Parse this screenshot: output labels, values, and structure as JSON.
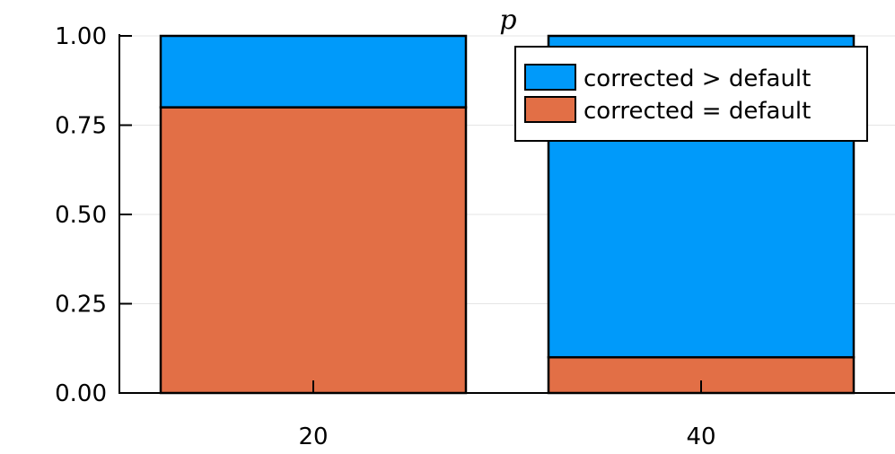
{
  "chart_data": {
    "type": "bar",
    "stacked": true,
    "title": "p",
    "xlabel": "",
    "ylabel": "",
    "categories": [
      "20",
      "40"
    ],
    "ylim": [
      0,
      1
    ],
    "yticks": [
      "0.00",
      "0.25",
      "0.50",
      "0.75",
      "1.00"
    ],
    "ytick_values": [
      0,
      0.25,
      0.5,
      0.75,
      1.0
    ],
    "grid": true,
    "legend_position": "top-right",
    "series": [
      {
        "name": "corrected > default",
        "color": "#009AFA",
        "values": [
          0.2,
          0.9
        ]
      },
      {
        "name": "corrected = default",
        "color": "#E26F46",
        "values": [
          0.8,
          0.1
        ]
      }
    ],
    "stack_order": [
      "corrected = default",
      "corrected > default"
    ],
    "legend_order": [
      "corrected > default",
      "corrected = default"
    ]
  }
}
